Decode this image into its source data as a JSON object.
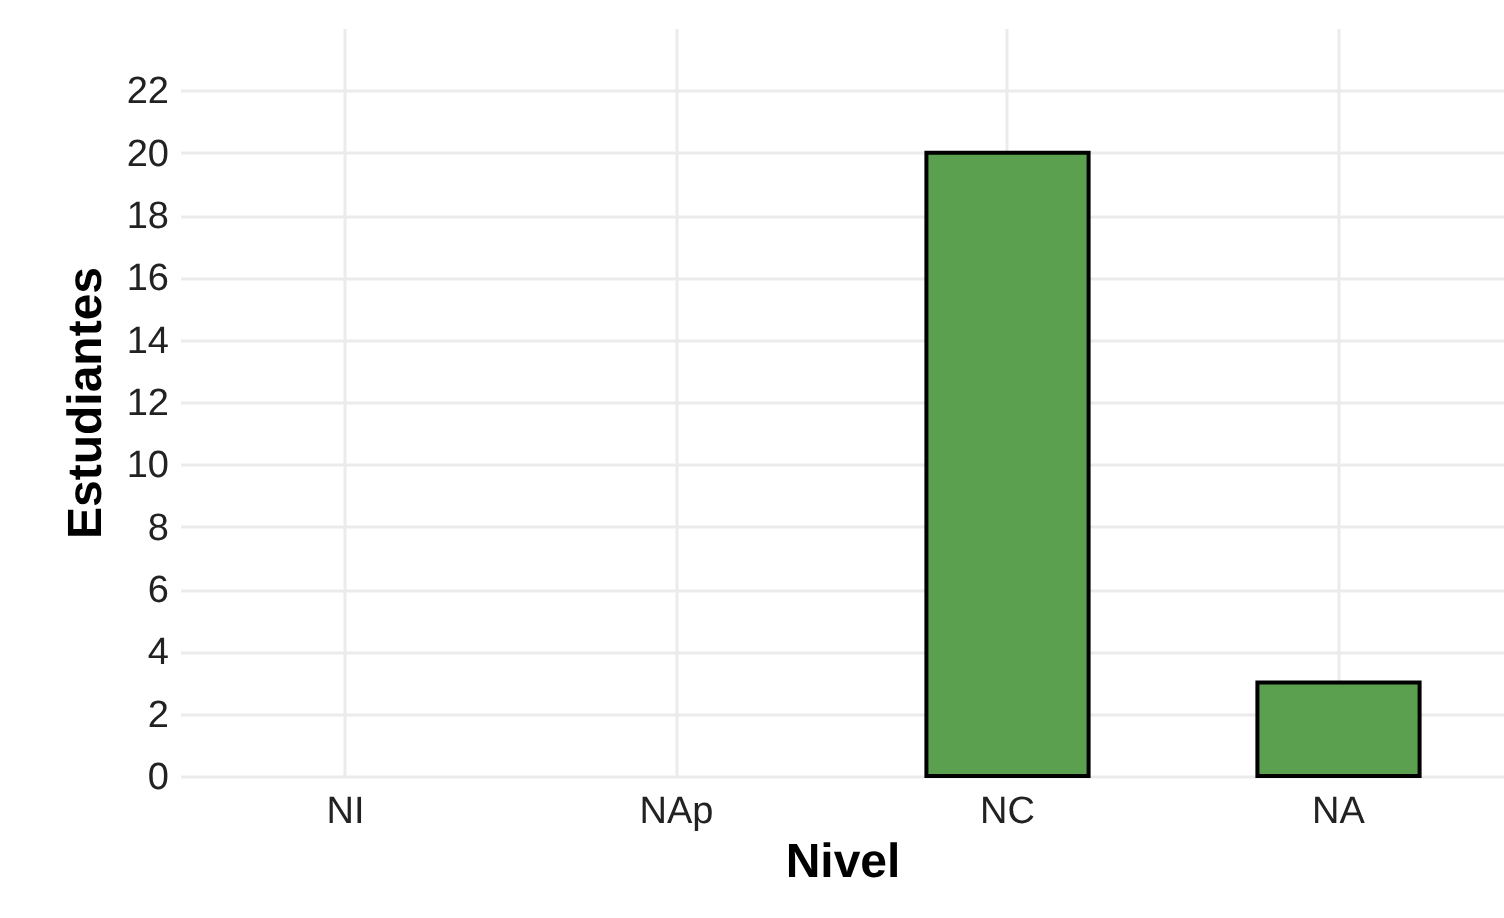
{
  "chart_data": {
    "type": "bar",
    "xlabel": "Nivel",
    "ylabel": "Estudiantes",
    "categories": [
      "NI",
      "NAp",
      "NC",
      "NA"
    ],
    "values": [
      0,
      0,
      20,
      3
    ],
    "color": "#5aa04f",
    "ylim": [
      0,
      24
    ],
    "yticks": [
      0,
      2,
      4,
      6,
      8,
      10,
      12,
      14,
      16,
      18,
      20,
      22
    ],
    "grid": true
  }
}
